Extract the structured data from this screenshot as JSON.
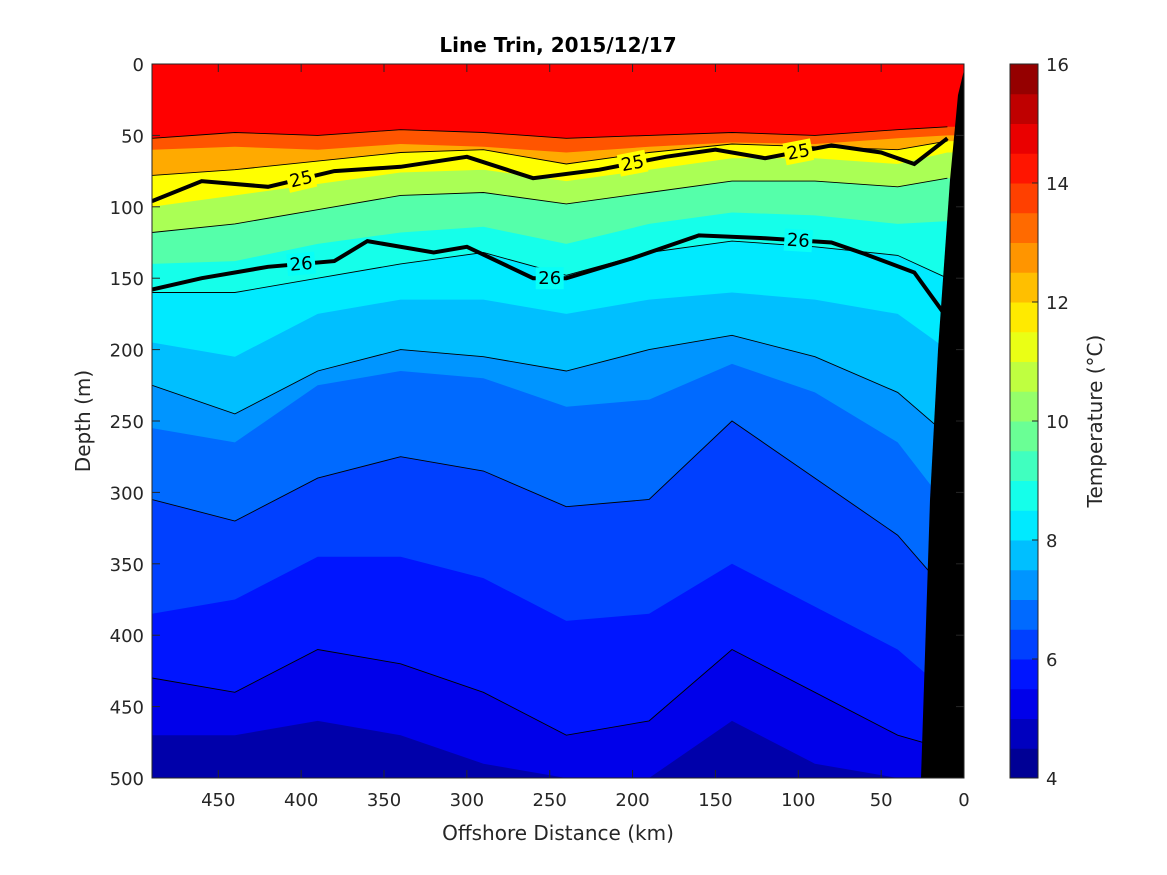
{
  "chart_data": {
    "type": "heatmap",
    "title": "Line Trin, 2015/12/17",
    "xlabel": "Offshore Distance (km)",
    "ylabel": "Depth (m)",
    "colorbar_label": "Temperature (°C)",
    "xlim": [
      490,
      0
    ],
    "ylim": [
      0,
      500
    ],
    "x_reversed": true,
    "y_reversed": true,
    "x_ticks": [
      450,
      400,
      350,
      300,
      250,
      200,
      150,
      100,
      50,
      0
    ],
    "y_ticks": [
      0,
      50,
      100,
      150,
      200,
      250,
      300,
      350,
      400,
      450,
      500
    ],
    "colorbar_range": [
      4,
      16
    ],
    "colorbar_ticks": [
      4,
      6,
      8,
      10,
      12,
      14,
      16
    ],
    "colorbar_levels": 24,
    "colormap": "jet",
    "grid": false,
    "temperature_isotherms": [
      {
        "value": 14,
        "depth": [
          52,
          48,
          50,
          46,
          48,
          52,
          50,
          48,
          50,
          46,
          44
        ]
      },
      {
        "value": 13,
        "depth": [
          60,
          58,
          60,
          56,
          58,
          62,
          58,
          55,
          56,
          52,
          50
        ]
      },
      {
        "value": 12,
        "depth": [
          78,
          74,
          68,
          62,
          60,
          70,
          62,
          56,
          58,
          60,
          54
        ]
      },
      {
        "value": 11,
        "depth": [
          100,
          92,
          84,
          76,
          74,
          82,
          74,
          66,
          66,
          70,
          62
        ]
      },
      {
        "value": 10,
        "depth": [
          118,
          112,
          102,
          92,
          90,
          98,
          90,
          82,
          82,
          86,
          80
        ]
      },
      {
        "value": 9,
        "depth": [
          140,
          138,
          126,
          118,
          114,
          126,
          112,
          104,
          106,
          112,
          110
        ]
      },
      {
        "value": 8.5,
        "depth": [
          160,
          160,
          150,
          140,
          132,
          148,
          132,
          124,
          128,
          134,
          150
        ]
      },
      {
        "value": 8,
        "depth": [
          195,
          205,
          175,
          165,
          165,
          175,
          165,
          160,
          165,
          175,
          200
        ]
      },
      {
        "value": 7.5,
        "depth": [
          225,
          245,
          215,
          200,
          205,
          215,
          200,
          190,
          205,
          230,
          260
        ]
      },
      {
        "value": 7,
        "depth": [
          255,
          265,
          225,
          215,
          220,
          240,
          235,
          210,
          230,
          265,
          310
        ]
      },
      {
        "value": 6.5,
        "depth": [
          305,
          320,
          290,
          275,
          285,
          310,
          305,
          250,
          290,
          330,
          370
        ]
      },
      {
        "value": 6,
        "depth": [
          385,
          375,
          345,
          345,
          360,
          390,
          385,
          350,
          380,
          410,
          440
        ]
      },
      {
        "value": 5.5,
        "depth": [
          430,
          440,
          410,
          420,
          440,
          470,
          460,
          410,
          440,
          470,
          480
        ]
      },
      {
        "value": 5,
        "depth": [
          470,
          470,
          460,
          470,
          490,
          500,
          500,
          460,
          490,
          500,
          500
        ]
      }
    ],
    "isotherm_x_km": [
      490,
      440,
      390,
      340,
      290,
      240,
      190,
      140,
      90,
      40,
      10
    ],
    "density_contours": [
      {
        "label": "25",
        "x": [
          490,
          460,
          420,
          380,
          340,
          300,
          260,
          220,
          180,
          150,
          120,
          80,
          50,
          30,
          10
        ],
        "depth": [
          96,
          82,
          86,
          75,
          72,
          65,
          80,
          74,
          65,
          60,
          66,
          57,
          62,
          70,
          52
        ]
      },
      {
        "label": "26",
        "x": [
          490,
          460,
          420,
          380,
          360,
          320,
          300,
          260,
          240,
          200,
          160,
          120,
          80,
          60,
          30,
          10
        ],
        "depth": [
          158,
          150,
          142,
          138,
          124,
          132,
          128,
          150,
          150,
          136,
          120,
          122,
          125,
          133,
          146,
          178
        ]
      }
    ],
    "labels": {
      "tick_0": "0"
    }
  }
}
